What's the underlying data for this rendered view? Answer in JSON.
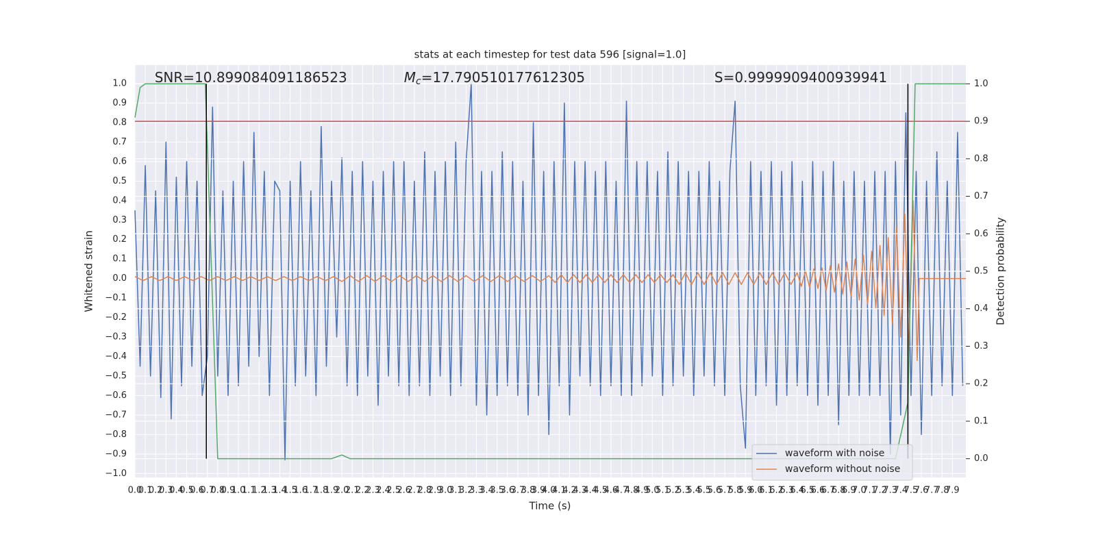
{
  "chart_data": {
    "type": "line",
    "title": "stats at each timestep for test data 596 [signal=1.0]",
    "xlabel": "Time (s)",
    "ylabel": "Whitened strain",
    "y2label": "Detection probability",
    "xlim": [
      0,
      8.03
    ],
    "ylim": [
      -1.02,
      1.095
    ],
    "y2lim": [
      -0.05,
      1.05
    ],
    "grid": true,
    "legend": "lower right",
    "background": "#eaeaf2",
    "xticks": [
      {
        "value": 0,
        "label": "0.0"
      },
      0.1,
      0.2,
      0.3,
      0.4,
      0.5,
      0.6,
      0.7,
      0.8,
      0.9,
      {
        "value": 1,
        "label": "1.0"
      },
      1.1,
      1.2,
      1.3,
      1.4,
      1.5,
      1.6,
      1.7,
      1.8,
      1.9,
      {
        "value": 2,
        "label": "2.0"
      },
      2.1,
      2.2,
      2.3,
      2.4,
      2.5,
      2.6,
      2.7,
      2.8,
      2.9,
      {
        "value": 3,
        "label": "3.0"
      },
      3.1,
      3.2,
      3.3,
      3.4,
      3.5,
      3.6,
      3.7,
      3.8,
      3.9,
      {
        "value": 4,
        "label": "4.0"
      },
      4.1,
      4.2,
      4.3,
      4.4,
      4.5,
      4.6,
      4.7,
      4.8,
      4.9,
      {
        "value": 5,
        "label": "5.0"
      },
      5.1,
      5.2,
      5.3,
      5.4,
      5.5,
      5.6,
      5.7,
      5.8,
      5.9,
      {
        "value": 6,
        "label": "6.0"
      },
      6.1,
      6.2,
      6.3,
      6.4,
      6.5,
      6.6,
      6.7,
      6.8,
      6.9,
      {
        "value": 7,
        "label": "7.0"
      },
      7.1,
      7.2,
      7.3,
      7.4,
      7.5,
      7.6,
      7.7,
      7.8,
      7.9
    ],
    "yticks": [
      {
        "value": -1,
        "label": "−1.0"
      },
      {
        "value": -0.9,
        "label": "−0.9"
      },
      {
        "value": -0.8,
        "label": "−0.8"
      },
      {
        "value": -0.7,
        "label": "−0.7"
      },
      {
        "value": -0.6,
        "label": "−0.6"
      },
      {
        "value": -0.5,
        "label": "−0.5"
      },
      {
        "value": -0.4,
        "label": "−0.4"
      },
      {
        "value": -0.3,
        "label": "−0.3"
      },
      {
        "value": -0.2,
        "label": "−0.2"
      },
      {
        "value": -0.1,
        "label": "−0.1"
      },
      {
        "value": 0,
        "label": "0.0"
      },
      0.1,
      0.2,
      0.3,
      0.4,
      0.5,
      0.6,
      0.7,
      0.8,
      0.9,
      {
        "value": 1,
        "label": "1.0"
      }
    ],
    "y2ticks": [
      {
        "value": 0,
        "label": "0.0"
      },
      0.1,
      0.2,
      0.3,
      0.4,
      0.5,
      0.6,
      0.7,
      0.8,
      0.9,
      {
        "value": 1,
        "label": "1.0"
      }
    ],
    "annotations": [
      {
        "symbol": "SNR",
        "separator": "=",
        "value": 10.899084091186523,
        "x": 0.19
      },
      {
        "symbol": "M",
        "subscript": "c",
        "separator": "=",
        "value": 17.790510177612305,
        "x": 2.6
      },
      {
        "symbol": "S",
        "separator": "=",
        "value": 0.9999909400939941,
        "x": 5.6
      }
    ],
    "series": [
      {
        "name": "waveform with noise",
        "color": "#4c72b0",
        "x": [
          0,
          0.05,
          0.1,
          0.15,
          0.2,
          0.25,
          0.3,
          0.35,
          0.4,
          0.45,
          0.5,
          0.55,
          0.6,
          0.65,
          0.7,
          0.75,
          0.8,
          0.85,
          0.9,
          0.95,
          1,
          1.05,
          1.1,
          1.15,
          1.2,
          1.25,
          1.3,
          1.35,
          1.4,
          1.45,
          1.5,
          1.55,
          1.6,
          1.65,
          1.7,
          1.75,
          1.8,
          1.85,
          1.9,
          1.95,
          2,
          2.05,
          2.1,
          2.15,
          2.2,
          2.25,
          2.3,
          2.35,
          2.4,
          2.45,
          2.5,
          2.55,
          2.6,
          2.65,
          2.7,
          2.75,
          2.8,
          2.85,
          2.9,
          2.95,
          3,
          3.05,
          3.1,
          3.15,
          3.2,
          3.25,
          3.3,
          3.35,
          3.4,
          3.45,
          3.5,
          3.55,
          3.6,
          3.65,
          3.7,
          3.75,
          3.8,
          3.85,
          3.9,
          3.95,
          4,
          4.05,
          4.1,
          4.15,
          4.2,
          4.25,
          4.3,
          4.35,
          4.4,
          4.45,
          4.5,
          4.55,
          4.6,
          4.65,
          4.7,
          4.75,
          4.8,
          4.85,
          4.9,
          4.95,
          5,
          5.05,
          5.1,
          5.15,
          5.2,
          5.25,
          5.3,
          5.35,
          5.4,
          5.45,
          5.5,
          5.55,
          5.6,
          5.65,
          5.7,
          5.75,
          5.8,
          5.85,
          5.9,
          5.95,
          6,
          6.05,
          6.1,
          6.15,
          6.2,
          6.25,
          6.3,
          6.35,
          6.4,
          6.45,
          6.5,
          6.55,
          6.6,
          6.65,
          6.7,
          6.75,
          6.8,
          6.85,
          6.9,
          6.95,
          7,
          7.05,
          7.1,
          7.15,
          7.2,
          7.25,
          7.3,
          7.35,
          7.4,
          7.45,
          7.5,
          7.55,
          7.6,
          7.65,
          7.7,
          7.75,
          7.8,
          7.85,
          7.9,
          7.95,
          8
        ],
        "values": [
          0.35,
          -0.45,
          0.58,
          -0.5,
          0.45,
          -0.61,
          0.7,
          -0.72,
          0.52,
          -0.55,
          0.6,
          -0.45,
          0.5,
          -0.6,
          -0.4,
          0.88,
          -0.5,
          0.45,
          -0.6,
          0.5,
          -0.55,
          0.6,
          -0.45,
          0.75,
          -0.4,
          0.55,
          -0.6,
          0.5,
          0.45,
          -0.93,
          0.5,
          -0.55,
          0.6,
          -0.5,
          0.45,
          -0.6,
          0.78,
          -0.45,
          0.5,
          -0.3,
          0.62,
          -0.55,
          0.55,
          -0.6,
          0.6,
          -0.5,
          0.5,
          -0.65,
          0.55,
          -0.5,
          0.6,
          -0.55,
          0.6,
          -0.6,
          0.5,
          -0.55,
          0.65,
          -0.6,
          0.55,
          -0.5,
          0.6,
          -0.6,
          0.7,
          -0.55,
          0.6,
          1.0,
          -0.65,
          0.55,
          -0.7,
          0.55,
          -0.6,
          0.65,
          -0.55,
          0.6,
          -0.6,
          0.5,
          -0.7,
          0.8,
          -0.6,
          0.55,
          -0.8,
          0.6,
          -0.55,
          0.9,
          -0.7,
          0.6,
          -0.5,
          0.6,
          -0.55,
          0.55,
          -0.6,
          0.6,
          -0.55,
          0.5,
          -0.6,
          0.91,
          -0.6,
          0.6,
          -0.55,
          0.6,
          -0.5,
          0.55,
          -0.6,
          0.65,
          -0.55,
          0.6,
          -0.5,
          0.55,
          -0.6,
          0.55,
          -0.5,
          0.6,
          -0.55,
          0.5,
          -0.6,
          0.55,
          0.91,
          -0.55,
          -0.87,
          0.6,
          -0.6,
          0.55,
          -0.55,
          0.6,
          -0.65,
          0.55,
          -0.6,
          0.6,
          -0.55,
          0.5,
          -0.6,
          0.6,
          -0.65,
          0.55,
          -0.6,
          0.6,
          -0.75,
          0.5,
          -0.6,
          0.55,
          -0.6,
          0.5,
          -0.6,
          0.55,
          -0.6,
          0.55,
          -0.9,
          0.6,
          -0.7,
          0.85,
          -0.6,
          0.55,
          -0.8,
          0.5,
          -0.6,
          0.65,
          -0.55,
          0.5,
          -0.6,
          0.75,
          -0.55
        ]
      },
      {
        "name": "waveform without noise",
        "color": "#dd8452",
        "x": [
          0,
          0.08,
          0.16,
          0.24,
          0.32,
          0.4,
          0.48,
          0.56,
          0.64,
          0.72,
          0.8,
          0.88,
          0.96,
          1.04,
          1.12,
          1.2,
          1.28,
          1.36,
          1.44,
          1.52,
          1.6,
          1.68,
          1.76,
          1.84,
          1.92,
          2,
          2.08,
          2.16,
          2.24,
          2.32,
          2.4,
          2.48,
          2.56,
          2.64,
          2.72,
          2.8,
          2.88,
          2.96,
          3.04,
          3.12,
          3.2,
          3.28,
          3.36,
          3.44,
          3.52,
          3.6,
          3.68,
          3.76,
          3.84,
          3.92,
          4,
          4.06,
          4.12,
          4.18,
          4.24,
          4.3,
          4.36,
          4.42,
          4.48,
          4.54,
          4.6,
          4.66,
          4.72,
          4.78,
          4.84,
          4.9,
          4.96,
          5.02,
          5.08,
          5.14,
          5.2,
          5.26,
          5.32,
          5.38,
          5.44,
          5.5,
          5.56,
          5.62,
          5.68,
          5.74,
          5.8,
          5.86,
          5.92,
          5.98,
          6.04,
          6.1,
          6.16,
          6.22,
          6.28,
          6.34,
          6.4,
          6.44,
          6.48,
          6.52,
          6.56,
          6.6,
          6.64,
          6.68,
          6.72,
          6.76,
          6.8,
          6.84,
          6.88,
          6.92,
          6.96,
          7,
          7.04,
          7.08,
          7.12,
          7.16,
          7.2,
          7.24,
          7.28,
          7.32,
          7.36,
          7.4,
          7.44,
          7.48,
          7.52,
          7.56,
          7.58,
          8.03
        ],
        "values": [
          0.01,
          -0.01,
          0.01,
          -0.01,
          0.01,
          -0.01,
          0.01,
          -0.01,
          0.01,
          -0.01,
          0.01,
          -0.01,
          0.01,
          -0.01,
          0.01,
          -0.01,
          0.01,
          -0.01,
          0.01,
          -0.01,
          0.01,
          -0.01,
          0.01,
          -0.01,
          0.01,
          -0.015,
          0.015,
          -0.015,
          0.015,
          -0.015,
          0.015,
          -0.015,
          0.015,
          -0.015,
          0.015,
          -0.015,
          0.015,
          -0.015,
          0.015,
          -0.015,
          0.015,
          -0.015,
          0.015,
          -0.015,
          0.015,
          -0.015,
          0.015,
          -0.015,
          0.015,
          -0.015,
          0.015,
          -0.02,
          0.02,
          -0.02,
          0.02,
          -0.02,
          0.02,
          -0.02,
          0.02,
          -0.02,
          0.02,
          -0.02,
          0.02,
          -0.02,
          0.02,
          -0.02,
          0.02,
          -0.02,
          0.02,
          -0.02,
          0.02,
          -0.03,
          0.03,
          -0.03,
          0.03,
          -0.03,
          0.03,
          -0.03,
          0.03,
          -0.03,
          0.03,
          -0.03,
          0.03,
          -0.03,
          0.03,
          -0.03,
          0.03,
          -0.03,
          0.03,
          -0.03,
          0.03,
          -0.04,
          0.04,
          -0.045,
          0.05,
          -0.05,
          0.055,
          -0.06,
          0.065,
          -0.07,
          0.075,
          -0.08,
          0.085,
          -0.09,
          0.1,
          -0.11,
          0.12,
          -0.13,
          0.14,
          -0.15,
          0.17,
          -0.19,
          0.21,
          -0.23,
          0.26,
          -0.3,
          0.33,
          -0.37,
          0.4,
          -0.42,
          0,
          0
        ]
      },
      {
        "axis": "y2",
        "color": "#55a868",
        "x": [
          0,
          0.05,
          0.1,
          0.68,
          0.8,
          1.9,
          2.0,
          2.08,
          7.35,
          7.47,
          7.54,
          8.03
        ],
        "values": [
          0.91,
          0.99,
          1.0,
          1.0,
          0,
          0,
          0.01,
          0,
          0,
          0.15,
          1.0,
          1.0
        ]
      }
    ],
    "hlines": [
      {
        "y": 0.9,
        "axis": "y2",
        "color": "#c44e52"
      }
    ],
    "vlines": [
      {
        "x": 0.69,
        "ymin": 0,
        "ymax": 1,
        "axis": "y2",
        "color": "#000000"
      },
      {
        "x": 7.47,
        "ymin": 0,
        "ymax": 1,
        "axis": "y2",
        "color": "#000000"
      }
    ]
  }
}
